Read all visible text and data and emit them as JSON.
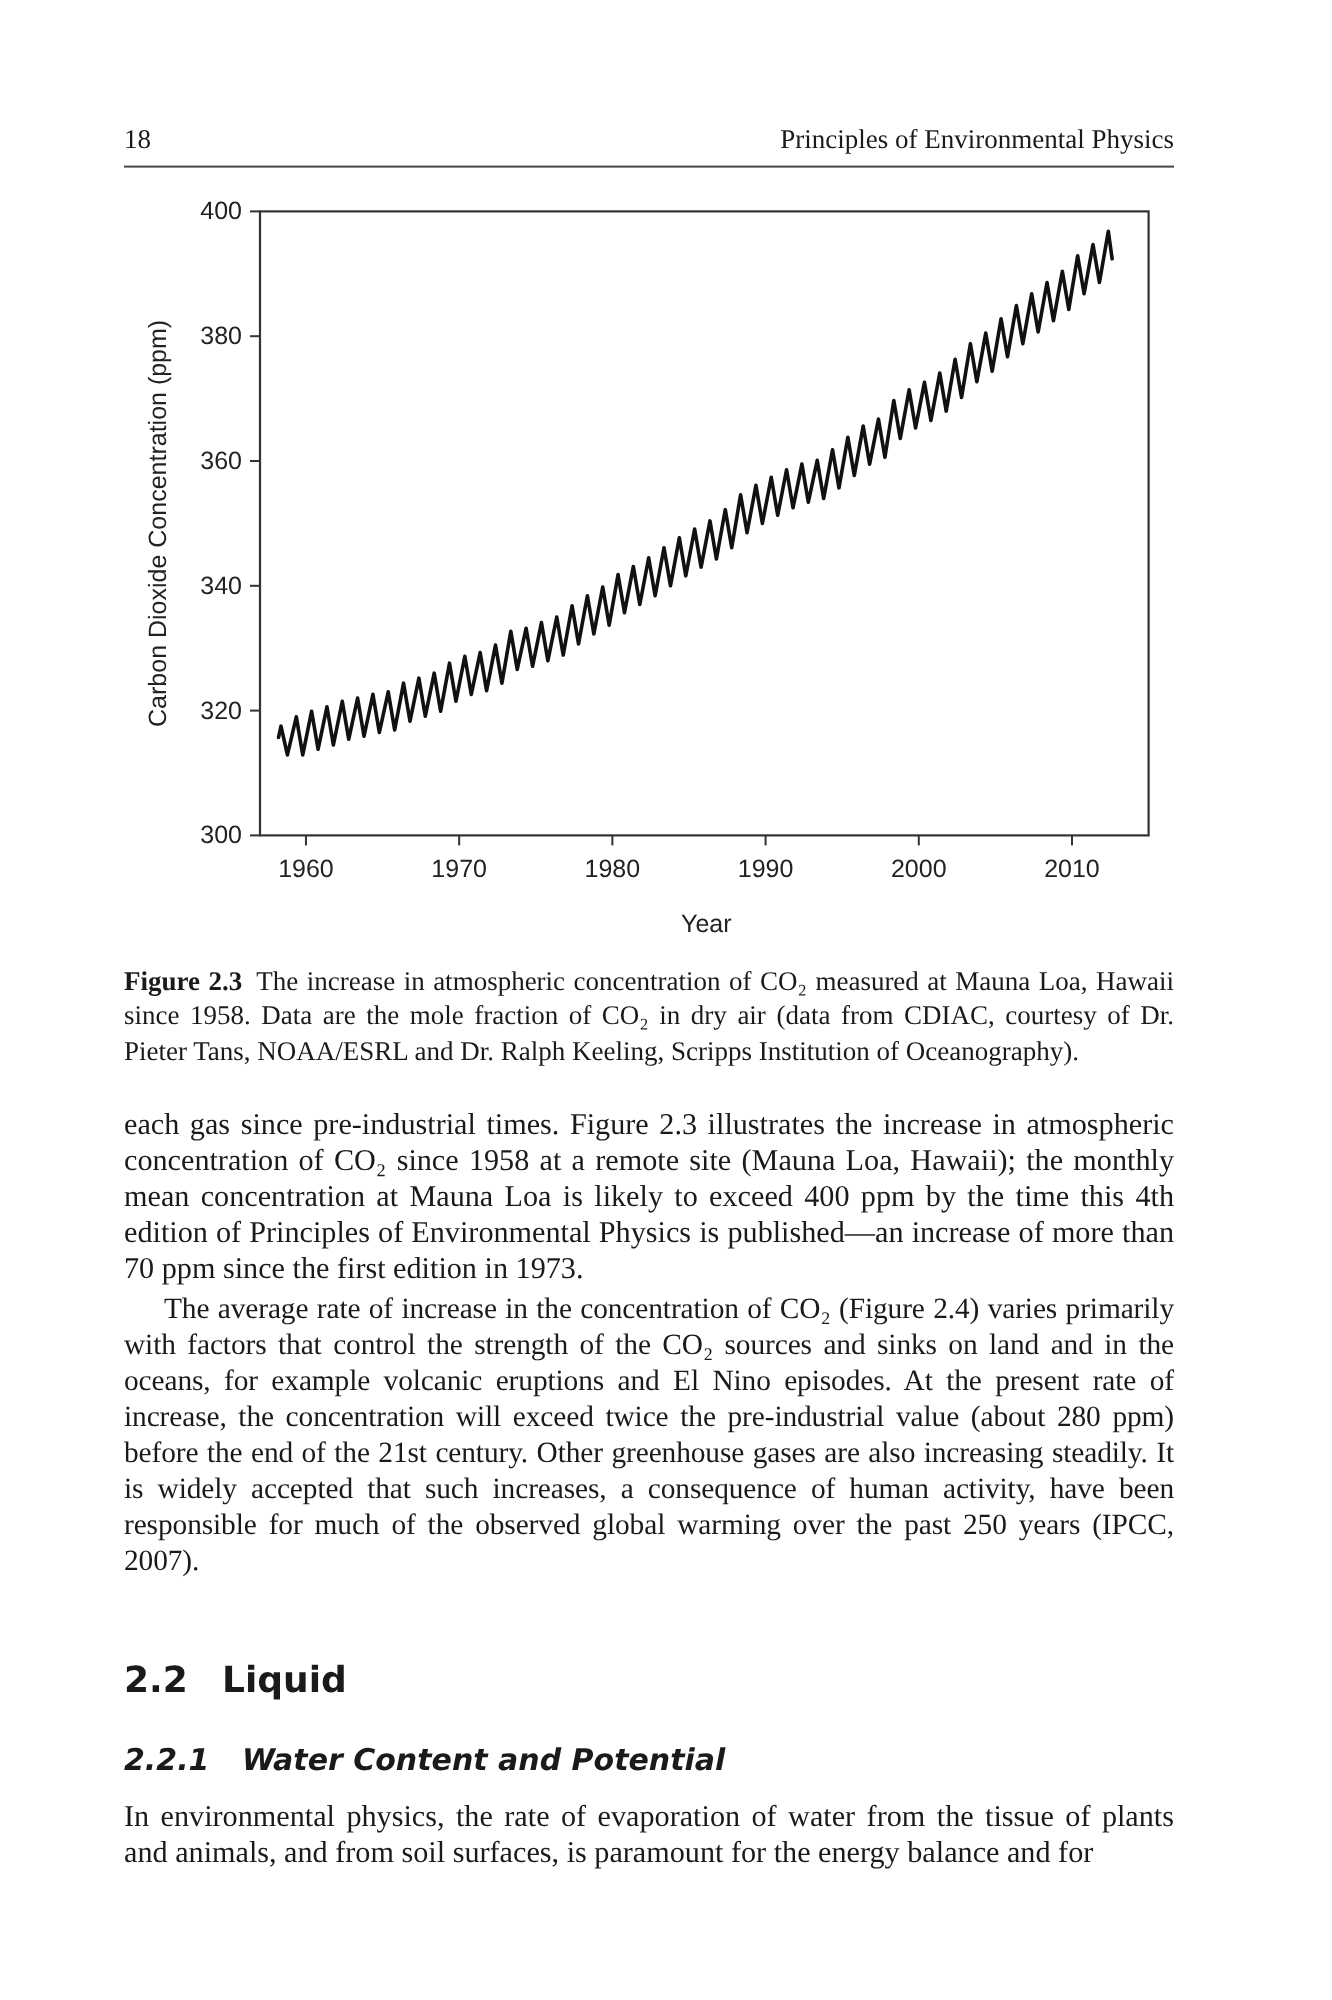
{
  "chart_data": {
    "type": "line",
    "xlabel": "Year",
    "ylabel": "Carbon Dioxide Concentration (ppm)",
    "xlim": [
      1957,
      2015
    ],
    "ylim": [
      300,
      400
    ],
    "xticks": [
      1960,
      1970,
      1980,
      1990,
      2000,
      2010
    ],
    "yticks": [
      300,
      320,
      340,
      360,
      380,
      400
    ],
    "x": [
      1958.21,
      1958.37,
      1958.79,
      1959.37,
      1959.79,
      1960.37,
      1960.79,
      1961.37,
      1961.79,
      1962.37,
      1962.79,
      1963.37,
      1963.79,
      1964.37,
      1964.79,
      1965.37,
      1965.79,
      1966.37,
      1966.79,
      1967.37,
      1967.79,
      1968.37,
      1968.79,
      1969.37,
      1969.79,
      1970.37,
      1970.79,
      1971.37,
      1971.79,
      1972.37,
      1972.79,
      1973.37,
      1973.79,
      1974.37,
      1974.79,
      1975.37,
      1975.79,
      1976.37,
      1976.79,
      1977.37,
      1977.79,
      1978.37,
      1978.79,
      1979.37,
      1979.79,
      1980.37,
      1980.79,
      1981.37,
      1981.79,
      1982.37,
      1982.79,
      1983.37,
      1983.79,
      1984.37,
      1984.79,
      1985.37,
      1985.79,
      1986.37,
      1986.79,
      1987.37,
      1987.79,
      1988.37,
      1988.79,
      1989.37,
      1989.79,
      1990.37,
      1990.79,
      1991.37,
      1991.79,
      1992.37,
      1992.79,
      1993.37,
      1993.79,
      1994.37,
      1994.79,
      1995.37,
      1995.79,
      1996.37,
      1996.79,
      1997.37,
      1997.79,
      1998.37,
      1998.79,
      1999.37,
      1999.79,
      2000.37,
      2000.79,
      2001.37,
      2001.79,
      2002.37,
      2002.79,
      2003.37,
      2003.79,
      2004.37,
      2004.79,
      2005.37,
      2005.79,
      2006.37,
      2006.79,
      2007.37,
      2007.79,
      2008.37,
      2008.79,
      2009.37,
      2009.79,
      2010.37,
      2010.79,
      2011.37,
      2011.79,
      2012.37,
      2012.62
    ],
    "series": [
      {
        "color": "#111111",
        "values": [
          315.7,
          317.5,
          312.9,
          319.0,
          312.9,
          319.9,
          313.8,
          320.6,
          314.5,
          321.5,
          315.4,
          322.0,
          315.9,
          322.6,
          316.5,
          323.0,
          316.9,
          324.4,
          318.3,
          325.2,
          319.1,
          326.0,
          319.9,
          327.6,
          321.5,
          328.7,
          322.6,
          329.3,
          323.2,
          330.5,
          324.4,
          332.7,
          326.6,
          333.2,
          327.1,
          334.1,
          328.0,
          335.0,
          328.9,
          336.8,
          330.7,
          338.4,
          332.3,
          339.8,
          333.7,
          341.8,
          335.7,
          343.1,
          337.0,
          344.5,
          338.4,
          346.1,
          340.0,
          347.7,
          341.6,
          349.1,
          343.0,
          350.4,
          344.3,
          352.2,
          346.1,
          354.6,
          348.5,
          356.1,
          350.0,
          357.4,
          351.3,
          358.6,
          352.5,
          359.5,
          353.4,
          360.1,
          354.0,
          361.8,
          355.7,
          363.8,
          357.7,
          365.6,
          359.5,
          366.7,
          360.6,
          369.7,
          363.6,
          371.4,
          365.3,
          372.6,
          366.5,
          374.1,
          368.0,
          376.3,
          370.2,
          378.8,
          372.7,
          380.5,
          374.4,
          382.8,
          376.7,
          384.9,
          378.8,
          386.8,
          380.7,
          388.6,
          382.5,
          390.4,
          384.3,
          392.9,
          386.8,
          394.7,
          388.6,
          396.8,
          392.4
        ]
      }
    ],
    "annotations": [
      "18",
      "Principles of Environmental Physics",
      "Figure 2.3",
      "The increase in atmospheric concentration of CO₂ measured at Mauna Loa, Hawaii since 1958. Data are the mole fraction of CO₂ in dry air (data from CDIAC, courtesy of Dr. Pieter Tans, NOAA/ESRL and Dr. Ralph Keeling, Scripps Institution of Oceanography).",
      "each gas since pre-industrial times. Figure 2.3 illustrates the increase in atmospheric concentration of CO₂ since 1958 at a remote site (Mauna Loa, Hawaii); the monthly mean concentration at Mauna Loa is likely to exceed 400 ppm by the time this 4th edition of Principles of Environmental Physics is published—an increase of more than 70 ppm since the first edition in 1973.",
      "The average rate of increase in the concentration of CO₂ (Figure 2.4) varies primarily with factors that control the strength of the CO₂ sources and sinks on land and in the oceans, for example volcanic eruptions and El Nino episodes. At the present rate of increase, the concentration will exceed twice the pre-industrial value (about 280 ppm) before the end of the 21st century. Other greenhouse gases are also increasing steadily. It is widely accepted that such increases, a consequence of human activity, have been responsible for much of the observed global warming over the past 250 years (IPCC, 2007).",
      "2.2",
      "Liquid",
      "2.2.1",
      "Water Content and Potential",
      "In environmental physics, the rate of evaporation of water from the tissue of plants and animals, and from soil surfaces, is paramount for the energy balance and for"
    ]
  }
}
